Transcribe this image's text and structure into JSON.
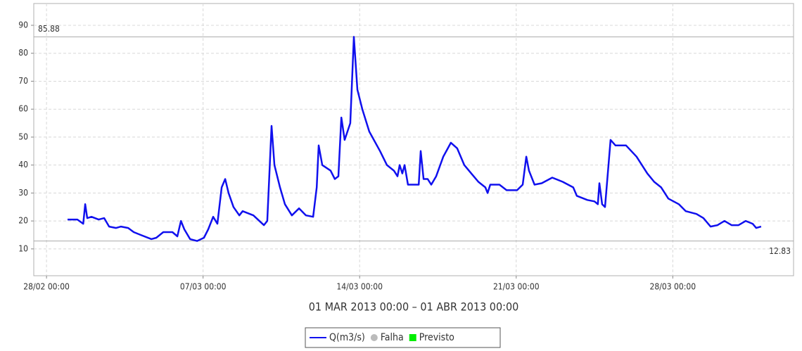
{
  "chart_data": {
    "type": "line",
    "subtitle": "01 MAR 2013 00:00 – 01 ABR 2013 00:00",
    "x": [
      0.94,
      1.38,
      1.64,
      1.73,
      1.82,
      2.01,
      2.33,
      2.58,
      2.8,
      3.11,
      3.33,
      3.65,
      3.9,
      4.21,
      4.69,
      4.91,
      5.22,
      5.63,
      5.85,
      6.01,
      6.16,
      6.42,
      6.73,
      7.04,
      7.23,
      7.45,
      7.64,
      7.83,
      7.99,
      8.14,
      8.36,
      8.62,
      8.77,
      9.25,
      9.72,
      9.87,
      10.06,
      10.19,
      10.44,
      10.66,
      10.97,
      11.29,
      11.6,
      11.92,
      12.08,
      12.17,
      12.33,
      12.7,
      12.89,
      13.05,
      13.18,
      13.33,
      13.58,
      13.74,
      13.9,
      14.12,
      14.43,
      14.91,
      15.22,
      15.53,
      15.69,
      15.79,
      15.91,
      16.01,
      16.16,
      16.64,
      16.73,
      16.86,
      17.04,
      17.2,
      17.42,
      17.74,
      18.08,
      18.36,
      18.68,
      18.99,
      19.31,
      19.62,
      19.72,
      19.84,
      20.25,
      20.57,
      21.04,
      21.29,
      21.45,
      21.57,
      21.82,
      22.14,
      22.61,
      23.08,
      23.55,
      23.71,
      24.18,
      24.5,
      24.65,
      24.72,
      24.84,
      24.97,
      25.22,
      25.44,
      25.91,
      26.38,
      26.86,
      27.17,
      27.48,
      27.8,
      28.27,
      28.58,
      29.06,
      29.37,
      29.69,
      30,
      30.31,
      30.63,
      30.94,
      31.26,
      31.57,
      31.73,
      31.95
    ],
    "series": [
      {
        "name": "Q(m3/s)",
        "color": "#1010ee",
        "values": [
          20.5,
          20.5,
          19,
          26,
          21,
          21.5,
          20.5,
          21,
          18,
          17.5,
          18,
          17.5,
          16,
          15,
          13.5,
          14,
          16,
          16,
          14.5,
          20,
          17,
          13.5,
          12.83,
          14,
          17,
          21.5,
          19,
          32,
          35,
          30,
          25,
          22,
          23.5,
          22,
          18.5,
          20,
          54,
          40,
          32,
          26,
          22,
          24.5,
          22,
          21.5,
          32,
          47,
          40,
          38,
          35,
          36,
          57,
          49,
          55,
          85.88,
          67,
          60,
          52,
          45,
          40,
          38,
          36,
          40,
          37,
          40,
          33,
          33,
          45,
          35,
          35,
          33,
          36,
          43,
          48,
          46,
          40,
          37,
          34,
          32,
          30,
          33,
          33,
          31,
          31,
          33,
          43,
          38,
          33,
          33.5,
          35.5,
          34,
          32,
          29,
          27.5,
          27,
          26,
          33.5,
          26,
          25,
          49,
          47,
          47,
          43,
          37,
          34,
          32,
          28,
          26,
          23.5,
          22.5,
          21,
          18,
          18.5,
          20,
          18.5,
          18.5,
          20,
          19,
          17.5,
          18
        ]
      }
    ],
    "xlim": [
      -0.57,
      33.4
    ],
    "xticks": [
      {
        "value": 0,
        "label": "28/02 00:00"
      },
      {
        "value": 7,
        "label": "07/03 00:00"
      },
      {
        "value": 14,
        "label": "14/03 00:00"
      },
      {
        "value": 21,
        "label": "21/03 00:00"
      },
      {
        "value": 28,
        "label": "28/03 00:00"
      }
    ],
    "ylim": [
      0.4,
      97.8
    ],
    "yticks": [
      10,
      20,
      30,
      40,
      50,
      60,
      70,
      80,
      90
    ],
    "grid": true,
    "max_line": 85.88,
    "min_line": 12.83,
    "legend_extra": [
      {
        "name": "Falha",
        "color": "#bbbbbb",
        "marker": "circle"
      },
      {
        "name": "Previsto",
        "color": "#00ee00",
        "marker": "square"
      }
    ]
  }
}
